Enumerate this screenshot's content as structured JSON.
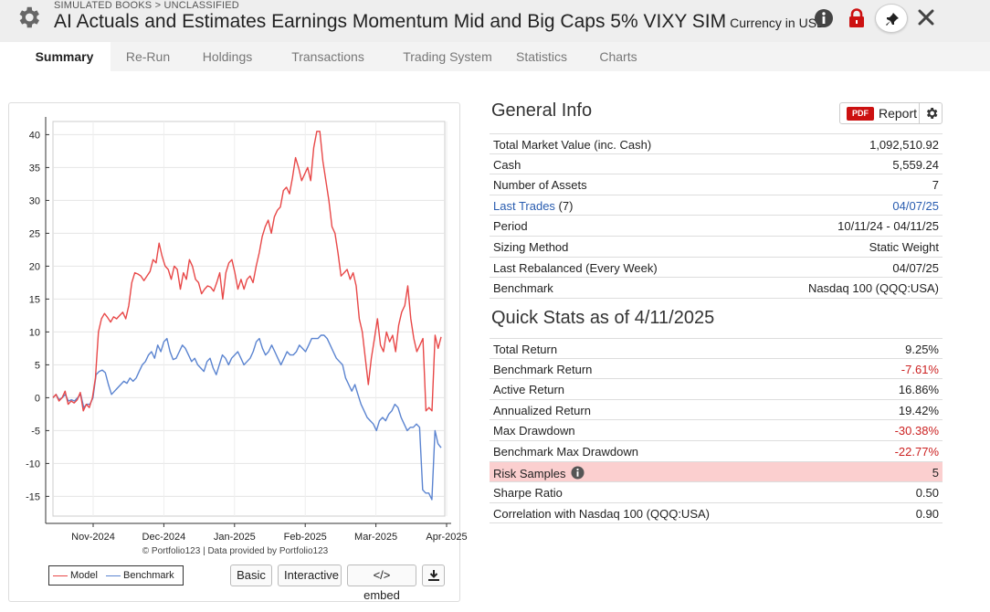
{
  "header": {
    "breadcrumb": "SIMULATED BOOKS > UNCLASSIFIED",
    "title": "AI Actuals and Estimates Earnings Momentum Mid and Big Caps 5% VIXY SIM",
    "currency": "Currency in USD"
  },
  "tabs": [
    "Summary",
    "Re-Run",
    "Holdings",
    "Transactions",
    "Trading System",
    "Statistics",
    "Charts"
  ],
  "chart": {
    "credit": "© Portfolio123 | Data provided by Portfolio123",
    "legend": {
      "model": "Model",
      "benchmark": "Benchmark"
    },
    "buttons": {
      "basic": "Basic",
      "interactive": "Interactive",
      "embed": "</> embed"
    },
    "colors": {
      "model": "#e84848",
      "benchmark": "#5b84d0"
    }
  },
  "chart_data": {
    "type": "line",
    "ylim": [
      -18,
      42
    ],
    "yticks": [
      40,
      35,
      30,
      25,
      20,
      15,
      10,
      5,
      0,
      -5,
      -10,
      -15
    ],
    "xticks": [
      "Nov-2024",
      "Dec-2024",
      "Jan-2025",
      "Feb-2025",
      "Mar-2025",
      "Apr-2025"
    ],
    "grid": true,
    "legend_position": "bottom-left",
    "series": [
      {
        "name": "Model",
        "values": [
          0,
          0.5,
          -0.5,
          0,
          1,
          -1,
          -0.5,
          -0.8,
          -0.3,
          0.8,
          -2,
          -1,
          -1.5,
          0,
          3,
          10,
          12,
          12.8,
          12.2,
          11.5,
          12.3,
          12,
          12.5,
          13,
          12,
          14,
          17.5,
          19,
          18.8,
          18.5,
          17.8,
          18.5,
          19.2,
          21,
          20.5,
          23.5,
          21.5,
          20,
          19.5,
          18,
          20,
          19.5,
          16.5,
          19,
          18,
          21,
          20,
          18,
          17.5,
          15.8,
          16.5,
          17,
          16.8,
          16.2,
          17.5,
          19,
          15,
          19,
          20.5,
          21,
          19,
          16.5,
          18,
          16.5,
          18,
          18.5,
          17.5,
          20,
          22,
          24.5,
          26,
          27,
          25,
          27.5,
          28.5,
          29,
          31.5,
          32,
          31,
          33.5,
          36.5,
          35,
          33,
          34,
          35,
          33,
          38,
          40.5,
          40.5,
          36,
          33,
          30,
          26,
          25,
          22,
          18.5,
          19,
          19.5,
          18,
          19,
          17,
          12,
          10,
          6,
          2,
          6,
          9,
          12,
          8,
          7,
          10,
          8.5,
          9.5,
          7,
          11,
          13,
          14,
          17,
          12,
          9,
          7,
          8,
          9,
          -2,
          -1.5,
          -2,
          9.5,
          7.5,
          9.25
        ]
      },
      {
        "name": "Benchmark",
        "values": [
          0,
          0.5,
          -0.3,
          0,
          0.5,
          -0.5,
          -0.3,
          -0.5,
          0,
          0.5,
          -1.5,
          -1,
          -1,
          0,
          3.5,
          4,
          4.2,
          3.8,
          2,
          0.5,
          1,
          1.5,
          2,
          2.5,
          2.2,
          3,
          2.5,
          3,
          4,
          5,
          5.5,
          6.5,
          7,
          6,
          8,
          7,
          8.5,
          9,
          7,
          5.8,
          6,
          7,
          8,
          7.5,
          6.5,
          5.5,
          6,
          5,
          4.5,
          4,
          5.5,
          6,
          4.5,
          3.5,
          5,
          6.5,
          6,
          5,
          6,
          6.5,
          7,
          6,
          5,
          5.5,
          6,
          7,
          8.5,
          9,
          7.5,
          6.5,
          7,
          8,
          7,
          6,
          5,
          6,
          7,
          6.5,
          6.5,
          7,
          8,
          7.5,
          7,
          8,
          9,
          9,
          9,
          9.5,
          9.5,
          9,
          8,
          7,
          6,
          5.5,
          5,
          3,
          2,
          1,
          2,
          0.5,
          -1,
          -2,
          -3,
          -3.5,
          -4,
          -5,
          -3.5,
          -3,
          -3.5,
          -2.5,
          -2,
          -1,
          -1.5,
          -3,
          -4,
          -5,
          -4.5,
          -4.5,
          -4,
          -4.5,
          -14,
          -14.5,
          -14.5,
          -15.5,
          -5,
          -7,
          -7.61
        ]
      }
    ]
  },
  "general_info": {
    "title": "General Info",
    "report_pdf": "PDF",
    "report_label": "Report",
    "rows": [
      {
        "label": "Total Market Value (inc. Cash)",
        "value": "1,092,510.92"
      },
      {
        "label": "Cash",
        "value": "5,559.24"
      },
      {
        "label": "Number of Assets",
        "value": "7"
      },
      {
        "label": "Last Trades",
        "label_suffix": " (7)",
        "value": "04/07/25"
      },
      {
        "label": "Period",
        "value": "10/11/24 - 04/11/25"
      },
      {
        "label": "Sizing Method",
        "value": "Static Weight"
      },
      {
        "label": "Last Rebalanced (Every Week)",
        "value": "04/07/25"
      },
      {
        "label": "Benchmark",
        "value": "Nasdaq 100 (QQQ:USA)"
      }
    ]
  },
  "quick_stats": {
    "title": "Quick Stats as of 4/11/2025",
    "rows": [
      {
        "label": "Total Return",
        "value": "9.25%"
      },
      {
        "label": "Benchmark Return",
        "value": "-7.61%"
      },
      {
        "label": "Active Return",
        "value": "16.86%"
      },
      {
        "label": "Annualized Return",
        "value": "19.42%"
      },
      {
        "label": "Max Drawdown",
        "value": "-30.38%"
      },
      {
        "label": "Benchmark Max Drawdown",
        "value": "-22.77%"
      },
      {
        "label": "Risk Samples",
        "value": "5"
      },
      {
        "label": "Sharpe Ratio",
        "value": "0.50"
      },
      {
        "label": "Correlation with Nasdaq 100 (QQQ:USA)",
        "value": "0.90"
      }
    ]
  }
}
